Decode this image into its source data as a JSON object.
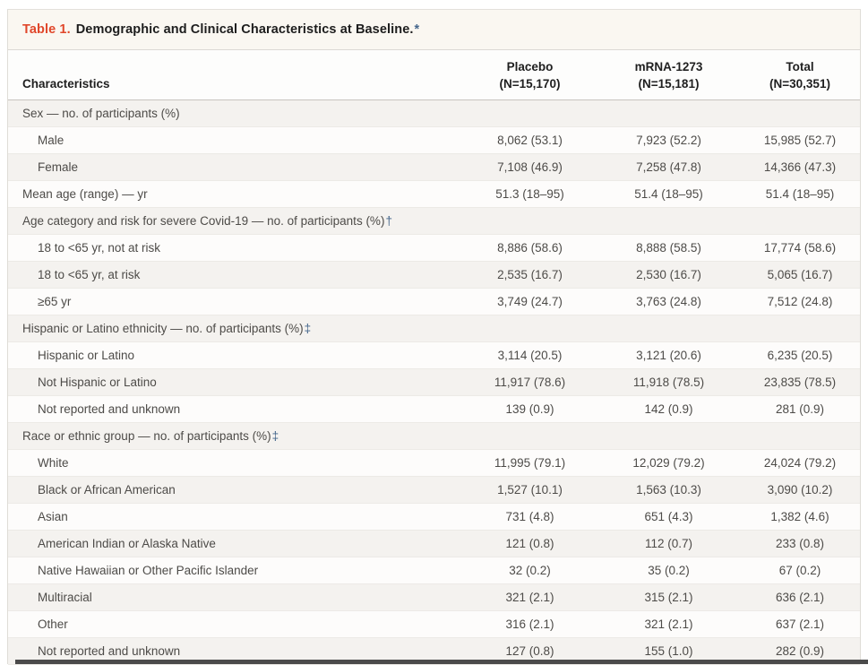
{
  "table": {
    "label": "Table 1.",
    "title": "Demographic and Clinical Characteristics at Baseline.",
    "title_marker": "*",
    "columns": {
      "characteristics": "Characteristics",
      "groups": [
        {
          "name": "Placebo",
          "n": "(N=15,170)"
        },
        {
          "name": "mRNA-1273",
          "n": "(N=15,181)"
        },
        {
          "name": "Total",
          "n": "(N=30,351)"
        }
      ]
    },
    "rows": [
      {
        "label": "Sex — no. of participants (%)",
        "indent": 0,
        "marker": "",
        "values": [
          "",
          "",
          ""
        ]
      },
      {
        "label": "Male",
        "indent": 1,
        "marker": "",
        "values": [
          "8,062 (53.1)",
          "7,923 (52.2)",
          "15,985 (52.7)"
        ]
      },
      {
        "label": "Female",
        "indent": 1,
        "marker": "",
        "values": [
          "7,108 (46.9)",
          "7,258 (47.8)",
          "14,366 (47.3)"
        ]
      },
      {
        "label": "Mean age (range) — yr",
        "indent": 0,
        "marker": "",
        "values": [
          "51.3 (18–95)",
          "51.4 (18–95)",
          "51.4 (18–95)"
        ]
      },
      {
        "label": "Age category and risk for severe Covid-19 — no. of participants (%)",
        "indent": 0,
        "marker": "†",
        "values": [
          "",
          "",
          ""
        ]
      },
      {
        "label": "18 to <65 yr, not at risk",
        "indent": 1,
        "marker": "",
        "values": [
          "8,886 (58.6)",
          "8,888 (58.5)",
          "17,774 (58.6)"
        ]
      },
      {
        "label": "18 to <65 yr, at risk",
        "indent": 1,
        "marker": "",
        "values": [
          "2,535 (16.7)",
          "2,530 (16.7)",
          "5,065 (16.7)"
        ]
      },
      {
        "label": "≥65 yr",
        "indent": 1,
        "marker": "",
        "values": [
          "3,749 (24.7)",
          "3,763 (24.8)",
          "7,512 (24.8)"
        ]
      },
      {
        "label": "Hispanic or Latino ethnicity — no. of participants (%)",
        "indent": 0,
        "marker": "‡",
        "values": [
          "",
          "",
          ""
        ]
      },
      {
        "label": "Hispanic or Latino",
        "indent": 1,
        "marker": "",
        "values": [
          "3,114 (20.5)",
          "3,121 (20.6)",
          "6,235 (20.5)"
        ]
      },
      {
        "label": "Not Hispanic or Latino",
        "indent": 1,
        "marker": "",
        "values": [
          "11,917 (78.6)",
          "11,918 (78.5)",
          "23,835 (78.5)"
        ]
      },
      {
        "label": "Not reported and unknown",
        "indent": 1,
        "marker": "",
        "values": [
          "139 (0.9)",
          "142 (0.9)",
          "281 (0.9)"
        ]
      },
      {
        "label": "Race or ethnic group — no. of participants (%)",
        "indent": 0,
        "marker": "‡",
        "values": [
          "",
          "",
          ""
        ]
      },
      {
        "label": "White",
        "indent": 1,
        "marker": "",
        "values": [
          "11,995 (79.1)",
          "12,029 (79.2)",
          "24,024 (79.2)"
        ]
      },
      {
        "label": "Black or African American",
        "indent": 1,
        "marker": "",
        "values": [
          "1,527 (10.1)",
          "1,563 (10.3)",
          "3,090 (10.2)"
        ]
      },
      {
        "label": "Asian",
        "indent": 1,
        "marker": "",
        "values": [
          "731 (4.8)",
          "651 (4.3)",
          "1,382 (4.6)"
        ]
      },
      {
        "label": "American Indian or Alaska Native",
        "indent": 1,
        "marker": "",
        "values": [
          "121 (0.8)",
          "112 (0.7)",
          "233 (0.8)"
        ]
      },
      {
        "label": "Native Hawaiian or Other Pacific Islander",
        "indent": 1,
        "marker": "",
        "values": [
          "32 (0.2)",
          "35 (0.2)",
          "67 (0.2)"
        ]
      },
      {
        "label": "Multiracial",
        "indent": 1,
        "marker": "",
        "values": [
          "321 (2.1)",
          "315 (2.1)",
          "636 (2.1)"
        ]
      },
      {
        "label": "Other",
        "indent": 1,
        "marker": "",
        "values": [
          "316 (2.1)",
          "321 (2.1)",
          "637 (2.1)"
        ]
      },
      {
        "label": "Not reported and unknown",
        "indent": 1,
        "marker": "",
        "values": [
          "127 (0.8)",
          "155 (1.0)",
          "282 (0.9)"
        ]
      }
    ]
  },
  "colors": {
    "accent_red": "#e0472b",
    "marker_blue": "#46678c",
    "divider_dark": "#4b4b4b"
  }
}
